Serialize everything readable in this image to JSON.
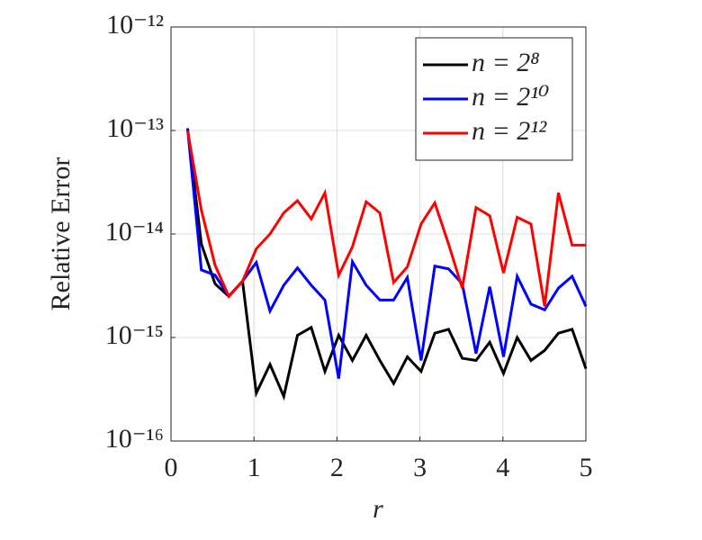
{
  "chart_data": {
    "type": "line",
    "xlabel": "r",
    "ylabel": "Relative Error",
    "xlim": [
      0,
      5
    ],
    "ylim": [
      1e-16,
      1e-12
    ],
    "log_y": true,
    "grid": true,
    "xticks": [
      0,
      1,
      2,
      3,
      4,
      5
    ],
    "yticks": [
      {
        "value": 1e-16,
        "label": "10⁻¹⁶"
      },
      {
        "value": 1e-15,
        "label": "10⁻¹⁵"
      },
      {
        "value": 1e-14,
        "label": "10⁻¹⁴"
      },
      {
        "value": 1e-13,
        "label": "10⁻¹³"
      },
      {
        "value": 1e-12,
        "label": "10⁻¹²"
      }
    ],
    "legend": "upper right",
    "x": [
      0.2,
      0.366,
      0.531,
      0.697,
      0.862,
      1.028,
      1.193,
      1.359,
      1.524,
      1.69,
      1.855,
      2.021,
      2.186,
      2.352,
      2.517,
      2.683,
      2.848,
      3.014,
      3.179,
      3.345,
      3.51,
      3.676,
      3.841,
      4.007,
      4.172,
      4.338,
      4.503,
      4.669,
      4.834,
      5.0
    ],
    "series": [
      {
        "name": "n = 2⁸",
        "color": "#000000",
        "values": [
          1.05e-13,
          8e-15,
          3.3e-15,
          2.5e-15,
          3.5e-15,
          2.9e-16,
          5.5e-16,
          2.7e-16,
          1.05e-15,
          1.25e-15,
          4.7e-16,
          1.05e-15,
          6e-16,
          1.05e-15,
          6e-16,
          3.6e-16,
          6.5e-16,
          4.7e-16,
          1.1e-15,
          1.2e-15,
          6.3e-16,
          6e-16,
          9e-16,
          4.5e-16,
          1e-15,
          6e-16,
          7.5e-16,
          1.1e-15,
          1.2e-15,
          5e-16
        ]
      },
      {
        "name": "n = 2¹⁰",
        "color": "#0000ff",
        "values": [
          1.05e-13,
          4.5e-15,
          4e-15,
          2.5e-15,
          3.5e-15,
          5.3e-15,
          1.8e-15,
          3.2e-15,
          4.7e-15,
          3.2e-15,
          2.3e-15,
          4e-16,
          5.4e-15,
          3.2e-15,
          2.3e-15,
          2.3e-15,
          3.8e-15,
          6e-16,
          4.9e-15,
          4.6e-15,
          3.3e-15,
          7e-16,
          3.1e-15,
          6.5e-16,
          3.9e-15,
          2.1e-15,
          1.85e-15,
          3e-15,
          3.9e-15,
          2e-15
        ]
      },
      {
        "name": "n = 2¹²",
        "color": "#ff0000",
        "values": [
          1e-13,
          1.7e-14,
          5e-15,
          2.5e-15,
          3.5e-15,
          7.2e-15,
          1e-14,
          1.6e-14,
          2.1e-14,
          1.4e-14,
          2.5e-14,
          4e-15,
          7.5e-15,
          2.05e-14,
          1.6e-14,
          3.4e-15,
          4.8e-15,
          1.25e-14,
          2e-14,
          8e-15,
          3e-15,
          1.8e-14,
          1.5e-14,
          4.2e-15,
          1.45e-14,
          1.25e-14,
          2e-15,
          2.5e-14,
          7.8e-15,
          7.8e-15
        ]
      }
    ]
  }
}
